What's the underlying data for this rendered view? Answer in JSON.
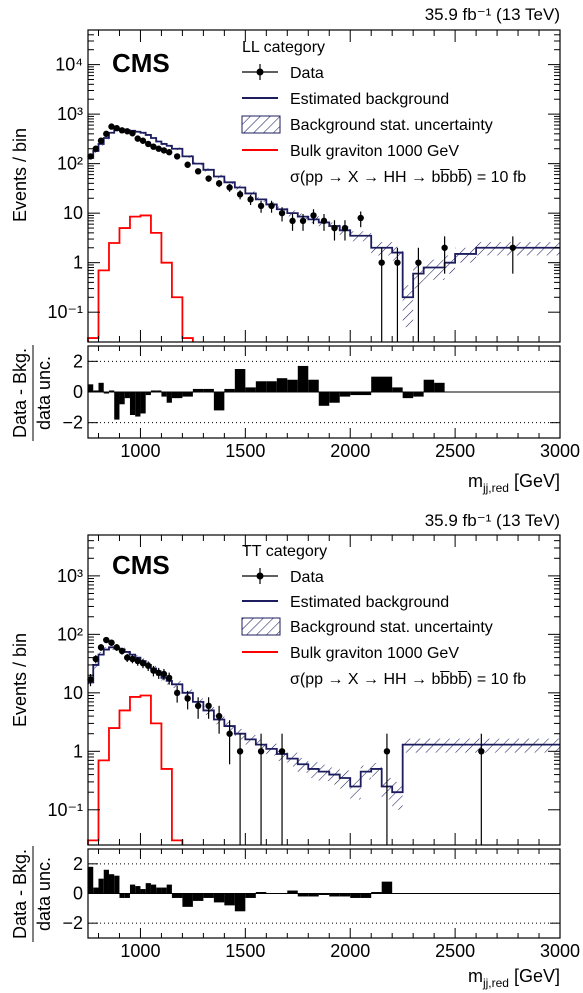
{
  "figure": {
    "lumi_label": "35.9 fb⁻¹ (13 TeV)",
    "experiment": "CMS",
    "xlabel": "m_jj,red [GeV]",
    "ylabel_main": "Events / bin",
    "ylabel_ratio_top": "Data - Bkg.",
    "ylabel_ratio_bottom": "data unc."
  },
  "legend": {
    "data": "Data",
    "estimated_background": "Estimated background",
    "background_stat_uncertainty": "Background stat. uncertainty",
    "signal": "Bulk graviton 1000 GeV",
    "xsec": "σ(pp → X → HH → bb̅bb̅) = 10 fb"
  },
  "colors": {
    "background_line": "#1c1c5e",
    "signal_line": "#ff0000",
    "data": "#000000",
    "ratio_bars": "#000000"
  },
  "chart_data": [
    {
      "type": "bar",
      "category_label": "LL category",
      "xlim": [
        750,
        3000
      ],
      "ylim": [
        0.025,
        50000
      ],
      "yscale": "log",
      "x_ticks": [
        1000,
        1500,
        2000,
        2500,
        3000
      ],
      "y_tick_labels": [
        "10⁻¹",
        "1",
        "10",
        "10²",
        "10³",
        "10⁴"
      ],
      "y_tick_values": [
        0.1,
        1,
        10,
        100,
        1000,
        10000
      ],
      "bin_edges": [
        750,
        775,
        800,
        825,
        850,
        875,
        900,
        925,
        950,
        975,
        1000,
        1025,
        1050,
        1075,
        1100,
        1125,
        1150,
        1200,
        1250,
        1300,
        1350,
        1400,
        1450,
        1500,
        1550,
        1600,
        1650,
        1700,
        1750,
        1800,
        1850,
        1900,
        1950,
        2000,
        2100,
        2200,
        2250,
        2300,
        2350,
        2400,
        2450,
        2500,
        2600,
        3000
      ],
      "background": [
        130,
        180,
        250,
        330,
        420,
        480,
        490,
        470,
        460,
        440,
        420,
        380,
        330,
        280,
        250,
        230,
        200,
        140,
        100,
        75,
        55,
        42,
        33,
        25,
        19,
        15,
        12,
        10,
        8.5,
        7.5,
        6.5,
        5.5,
        4.5,
        3.5,
        2.0,
        1.6,
        0.2,
        0.6,
        0.8,
        0.8,
        1.0,
        1.5,
        2.0
      ],
      "background_uncertainty": [
        12,
        15,
        18,
        20,
        22,
        24,
        25,
        24,
        23,
        22,
        22,
        20,
        18,
        16,
        14,
        13,
        12,
        9,
        7,
        5.5,
        4.5,
        3.5,
        3,
        2.5,
        2,
        1.8,
        1.6,
        1.4,
        1.3,
        1.2,
        1.1,
        1.0,
        0.9,
        0.8,
        0.6,
        0.5,
        0.15,
        0.3,
        0.35,
        0.35,
        0.4,
        0.5,
        0.6
      ],
      "signal_bin_edges": [
        750,
        800,
        850,
        900,
        950,
        1000,
        1050,
        1100,
        1150,
        1200,
        1250
      ],
      "signal": [
        0.03,
        0.7,
        2.5,
        5.0,
        8.5,
        9.0,
        4.0,
        1.0,
        0.2,
        0.03
      ],
      "data_points": [
        {
          "x": 762,
          "y": 140,
          "err": 12
        },
        {
          "x": 787,
          "y": 200,
          "err": 14
        },
        {
          "x": 812,
          "y": 290,
          "err": 17
        },
        {
          "x": 837,
          "y": 400,
          "err": 20
        },
        {
          "x": 862,
          "y": 560,
          "err": 24
        },
        {
          "x": 887,
          "y": 520,
          "err": 23
        },
        {
          "x": 912,
          "y": 470,
          "err": 22
        },
        {
          "x": 937,
          "y": 450,
          "err": 21
        },
        {
          "x": 962,
          "y": 410,
          "err": 20
        },
        {
          "x": 987,
          "y": 320,
          "err": 18
        },
        {
          "x": 1012,
          "y": 290,
          "err": 17
        },
        {
          "x": 1037,
          "y": 250,
          "err": 16
        },
        {
          "x": 1062,
          "y": 220,
          "err": 15
        },
        {
          "x": 1087,
          "y": 200,
          "err": 14
        },
        {
          "x": 1112,
          "y": 185,
          "err": 14
        },
        {
          "x": 1137,
          "y": 170,
          "err": 13
        },
        {
          "x": 1175,
          "y": 140,
          "err": 12
        },
        {
          "x": 1225,
          "y": 95,
          "err": 10
        },
        {
          "x": 1275,
          "y": 70,
          "err": 8.5
        },
        {
          "x": 1325,
          "y": 50,
          "err": 7
        },
        {
          "x": 1375,
          "y": 40,
          "err": 6.5
        },
        {
          "x": 1425,
          "y": 33,
          "err": 6
        },
        {
          "x": 1475,
          "y": 24,
          "err": 5
        },
        {
          "x": 1525,
          "y": 19,
          "err": 4.4
        },
        {
          "x": 1575,
          "y": 14,
          "err": 3.8
        },
        {
          "x": 1625,
          "y": 14,
          "err": 3.8
        },
        {
          "x": 1675,
          "y": 10,
          "err": 3.2
        },
        {
          "x": 1725,
          "y": 7,
          "err": 2.6
        },
        {
          "x": 1775,
          "y": 7,
          "err": 2.6
        },
        {
          "x": 1825,
          "y": 9,
          "err": 3
        },
        {
          "x": 1875,
          "y": 7,
          "err": 2.6
        },
        {
          "x": 1925,
          "y": 5,
          "err": 2.2
        },
        {
          "x": 1975,
          "y": 5,
          "err": 2.2
        },
        {
          "x": 2050,
          "y": 8,
          "err": 2.8
        },
        {
          "x": 2150,
          "y": 1,
          "err": 1
        },
        {
          "x": 2225,
          "y": 1,
          "err": 1
        },
        {
          "x": 2325,
          "y": 1,
          "err": 1
        },
        {
          "x": 2450,
          "y": 2,
          "err": 1.4
        },
        {
          "x": 2775,
          "y": 2,
          "err": 1.4
        }
      ],
      "ratio": {
        "ylim": [
          -3,
          3
        ],
        "y_ticks": [
          -2,
          0,
          2
        ],
        "values": [
          0.5,
          0.1,
          0.6,
          -0.1,
          0.1,
          -1.8,
          -0.8,
          -0.4,
          -1.5,
          -1.6,
          -1.4,
          -0.2,
          0.1,
          0.1,
          -0.3,
          -0.7,
          -0.4,
          -0.3,
          0.2,
          0.2,
          -1.2,
          0.2,
          1.5,
          0.3,
          0.7,
          0.7,
          0.9,
          0.8,
          1.7,
          0.8,
          -0.9,
          -0.7,
          -0.3,
          -0.2,
          1.0,
          0.3,
          -0.4,
          -0.3,
          0.8,
          0.6,
          0,
          0,
          0
        ]
      }
    },
    {
      "type": "bar",
      "category_label": "TT category",
      "xlim": [
        750,
        3000
      ],
      "ylim": [
        0.025,
        5000
      ],
      "yscale": "log",
      "x_ticks": [
        1000,
        1500,
        2000,
        2500,
        3000
      ],
      "y_tick_labels": [
        "10⁻¹",
        "1",
        "10",
        "10²",
        "10³"
      ],
      "y_tick_values": [
        0.1,
        1,
        10,
        100,
        1000
      ],
      "bin_edges": [
        750,
        775,
        800,
        825,
        850,
        875,
        900,
        925,
        950,
        975,
        1000,
        1025,
        1050,
        1075,
        1100,
        1125,
        1150,
        1200,
        1250,
        1300,
        1350,
        1400,
        1450,
        1500,
        1550,
        1600,
        1650,
        1700,
        1750,
        1800,
        1850,
        1900,
        1950,
        2000,
        2050,
        2100,
        2150,
        2200,
        2250,
        3000
      ],
      "background": [
        15,
        30,
        45,
        55,
        60,
        58,
        55,
        50,
        45,
        40,
        35,
        30,
        26,
        22,
        18,
        16,
        14,
        10,
        7,
        5,
        3.5,
        2.7,
        2.0,
        1.6,
        1.3,
        1.1,
        0.9,
        0.75,
        0.6,
        0.5,
        0.45,
        0.4,
        0.35,
        0.25,
        0.45,
        0.5,
        0.25,
        0.2,
        1.3
      ],
      "background_uncertainty": [
        3,
        4,
        5,
        5.5,
        6,
        6,
        5.5,
        5,
        4.6,
        4.2,
        3.8,
        3.4,
        3,
        2.7,
        2.3,
        2.1,
        1.9,
        1.4,
        1.0,
        0.8,
        0.6,
        0.5,
        0.4,
        0.3,
        0.28,
        0.25,
        0.22,
        0.2,
        0.17,
        0.15,
        0.14,
        0.13,
        0.12,
        0.1,
        0.12,
        0.13,
        0.1,
        0.1,
        0.35
      ],
      "signal_bin_edges": [
        750,
        800,
        850,
        900,
        950,
        1000,
        1050,
        1100,
        1150,
        1200
      ],
      "signal": [
        0.03,
        0.7,
        2.5,
        5.0,
        8.5,
        9.0,
        3.0,
        0.5,
        0.03
      ],
      "data_points": [
        {
          "x": 762,
          "y": 17,
          "err": 4
        },
        {
          "x": 787,
          "y": 38,
          "err": 6
        },
        {
          "x": 812,
          "y": 60,
          "err": 8
        },
        {
          "x": 837,
          "y": 80,
          "err": 9
        },
        {
          "x": 862,
          "y": 72,
          "err": 8.5
        },
        {
          "x": 887,
          "y": 60,
          "err": 8
        },
        {
          "x": 912,
          "y": 52,
          "err": 7
        },
        {
          "x": 937,
          "y": 40,
          "err": 6.3
        },
        {
          "x": 962,
          "y": 38,
          "err": 6
        },
        {
          "x": 987,
          "y": 35,
          "err": 6
        },
        {
          "x": 1012,
          "y": 32,
          "err": 5.6
        },
        {
          "x": 1037,
          "y": 29,
          "err": 5.4
        },
        {
          "x": 1062,
          "y": 24,
          "err": 4.9
        },
        {
          "x": 1087,
          "y": 22,
          "err": 4.7
        },
        {
          "x": 1112,
          "y": 21,
          "err": 4.6
        },
        {
          "x": 1137,
          "y": 18,
          "err": 4.2
        },
        {
          "x": 1175,
          "y": 10,
          "err": 3.2
        },
        {
          "x": 1225,
          "y": 8,
          "err": 2.8
        },
        {
          "x": 1275,
          "y": 6,
          "err": 2.4
        },
        {
          "x": 1325,
          "y": 6,
          "err": 2.4
        },
        {
          "x": 1375,
          "y": 4,
          "err": 2
        },
        {
          "x": 1425,
          "y": 2,
          "err": 1.4
        },
        {
          "x": 1475,
          "y": 1,
          "err": 1
        },
        {
          "x": 1575,
          "y": 1,
          "err": 1
        },
        {
          "x": 1675,
          "y": 1,
          "err": 1
        },
        {
          "x": 2175,
          "y": 1,
          "err": 1
        },
        {
          "x": 2625,
          "y": 1,
          "err": 1
        }
      ],
      "ratio": {
        "ylim": [
          -3,
          3
        ],
        "y_ticks": [
          -2,
          0,
          2
        ],
        "values": [
          1.8,
          0.4,
          1.0,
          1.6,
          1.3,
          1.2,
          -0.3,
          -0.3,
          0.6,
          0.5,
          0.3,
          0.7,
          0.6,
          0.4,
          0.4,
          0.6,
          -0.3,
          -0.9,
          -0.5,
          -0.3,
          -0.6,
          -0.8,
          -1.2,
          -0.3,
          0.1,
          0,
          0,
          0.2,
          -0.2,
          -0.2,
          -0.1,
          -0.2,
          -0.2,
          -0.3,
          -0.3,
          0.1,
          0.8,
          0,
          0
        ]
      }
    }
  ]
}
